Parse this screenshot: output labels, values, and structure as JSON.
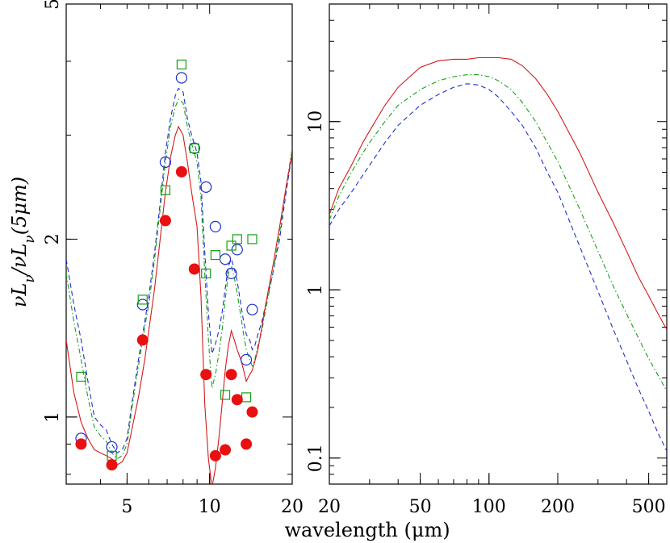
{
  "chart_data": [
    {
      "type": "scatter",
      "xscale": "log",
      "yscale": "log",
      "xlim": [
        3,
        20
      ],
      "ylim": [
        0.77,
        5
      ],
      "xticks": [
        {
          "v": 5,
          "label": "5"
        },
        {
          "v": 10,
          "label": "10"
        },
        {
          "v": 20,
          "label": "20"
        }
      ],
      "yticks": [
        {
          "v": 1,
          "label": "1"
        },
        {
          "v": 2,
          "label": "2"
        },
        {
          "v": 5,
          "label": "5"
        }
      ],
      "ylabel": "νL_ν/νL_ν(5μm)",
      "series": [
        {
          "style": "dashed",
          "color": "#1f2fd0",
          "x": [
            3.0,
            3.2,
            3.4,
            3.6,
            3.8,
            4.0,
            4.2,
            4.4,
            4.6,
            4.8,
            5.0,
            5.2,
            5.5,
            5.8,
            6.0,
            6.3,
            6.6,
            6.9,
            7.2,
            7.5,
            7.7,
            8.0,
            8.3,
            8.6,
            9.0,
            9.3,
            9.6,
            9.9,
            10.2,
            10.5,
            10.8,
            11.1,
            11.4,
            11.7,
            12.0,
            12.3,
            12.6,
            13.0,
            13.3,
            13.6,
            14.0,
            14.3,
            14.6,
            15.0,
            15.5,
            16.0,
            17.0,
            18.0,
            19.0,
            20.0
          ],
          "y": [
            1.85,
            1.55,
            1.35,
            1.15,
            1.0,
            0.97,
            0.95,
            0.9,
            0.87,
            0.88,
            0.92,
            1.05,
            1.25,
            1.45,
            1.6,
            1.9,
            2.3,
            2.8,
            3.2,
            3.5,
            3.6,
            3.55,
            3.2,
            3.0,
            2.8,
            2.5,
            1.9,
            1.5,
            1.28,
            1.33,
            1.4,
            1.5,
            1.65,
            1.8,
            1.85,
            1.78,
            1.7,
            1.55,
            1.45,
            1.38,
            1.35,
            1.3,
            1.32,
            1.38,
            1.45,
            1.55,
            1.75,
            2.0,
            2.4,
            2.8
          ]
        },
        {
          "style": "dashdot",
          "color": "#16a016",
          "x": [
            3.0,
            3.2,
            3.4,
            3.6,
            3.8,
            4.0,
            4.2,
            4.4,
            4.6,
            4.8,
            5.0,
            5.2,
            5.5,
            5.8,
            6.0,
            6.3,
            6.6,
            6.9,
            7.2,
            7.5,
            7.7,
            8.0,
            8.3,
            8.6,
            9.0,
            9.3,
            9.6,
            9.9,
            10.2,
            10.5,
            10.8,
            11.1,
            11.4,
            11.7,
            12.0,
            12.3,
            12.6,
            13.0,
            13.3,
            13.6,
            14.0,
            14.3,
            14.6,
            15.0,
            15.5,
            16.0,
            17.0,
            18.0,
            19.0,
            20.0
          ],
          "y": [
            1.75,
            1.45,
            1.25,
            1.08,
            0.96,
            0.93,
            0.91,
            0.87,
            0.85,
            0.86,
            0.9,
            1.03,
            1.22,
            1.42,
            1.55,
            1.85,
            2.25,
            2.7,
            3.1,
            3.35,
            3.45,
            3.4,
            3.1,
            2.9,
            2.7,
            2.35,
            1.75,
            1.35,
            1.12,
            1.18,
            1.28,
            1.4,
            1.58,
            1.75,
            1.8,
            1.72,
            1.62,
            1.48,
            1.38,
            1.3,
            1.25,
            1.22,
            1.25,
            1.32,
            1.4,
            1.52,
            1.75,
            2.05,
            2.45,
            2.85
          ]
        },
        {
          "style": "solid",
          "color": "#d41a1a",
          "x": [
            3.0,
            3.2,
            3.4,
            3.6,
            3.8,
            4.0,
            4.2,
            4.4,
            4.6,
            4.8,
            5.0,
            5.2,
            5.5,
            5.8,
            6.0,
            6.3,
            6.6,
            6.9,
            7.2,
            7.5,
            7.7,
            8.0,
            8.3,
            8.6,
            9.0,
            9.3,
            9.6,
            9.9,
            10.2,
            10.5,
            10.8,
            11.1,
            11.4,
            11.7,
            12.0,
            12.3,
            12.6,
            13.0,
            13.3,
            13.6,
            14.0,
            14.3,
            14.6,
            15.0,
            15.5,
            16.0,
            17.0,
            18.0,
            19.0,
            20.0
          ],
          "y": [
            1.35,
            1.1,
            0.98,
            0.92,
            0.88,
            0.87,
            0.86,
            0.85,
            0.83,
            0.84,
            0.87,
            0.95,
            1.08,
            1.25,
            1.4,
            1.65,
            2.0,
            2.4,
            2.75,
            3.0,
            3.1,
            3.0,
            2.7,
            2.4,
            2.1,
            1.6,
            1.05,
            0.85,
            0.76,
            0.82,
            0.92,
            1.05,
            1.2,
            1.32,
            1.4,
            1.35,
            1.3,
            1.25,
            1.2,
            1.15,
            1.18,
            1.2,
            1.24,
            1.3,
            1.42,
            1.55,
            1.8,
            2.1,
            2.45,
            2.8
          ]
        },
        {
          "marker": "open-circle",
          "color": "#1f2fd0",
          "x": [
            3.4,
            4.4,
            5.7,
            6.9,
            7.9,
            8.8,
            9.7,
            10.5,
            11.4,
            12.0,
            12.6,
            13.6,
            14.3
          ],
          "y": [
            0.92,
            0.89,
            1.55,
            2.7,
            3.75,
            2.85,
            2.45,
            2.1,
            1.85,
            1.75,
            1.92,
            1.25,
            1.52
          ]
        },
        {
          "marker": "open-square",
          "color": "#16a016",
          "x": [
            3.4,
            4.4,
            5.7,
            6.9,
            7.9,
            8.8,
            9.7,
            10.5,
            11.4,
            12.0,
            12.6,
            13.6,
            14.3
          ],
          "y": [
            1.17,
            0.86,
            1.58,
            2.42,
            3.95,
            2.85,
            1.75,
            1.88,
            1.09,
            1.95,
            2.0,
            1.08,
            2.0
          ]
        },
        {
          "marker": "filled-circle",
          "color": "#e81010",
          "x": [
            3.4,
            4.4,
            5.7,
            6.9,
            7.9,
            8.8,
            9.7,
            10.5,
            11.4,
            12.0,
            12.6,
            13.6,
            14.3
          ],
          "y": [
            0.9,
            0.83,
            1.35,
            2.15,
            2.6,
            1.78,
            1.18,
            0.86,
            0.88,
            1.18,
            1.07,
            0.9,
            1.02
          ]
        }
      ]
    },
    {
      "type": "line",
      "xscale": "log",
      "yscale": "log",
      "xlim": [
        20,
        600
      ],
      "ylim": [
        0.07,
        50
      ],
      "xticks": [
        {
          "v": 20,
          "label": "20"
        },
        {
          "v": 50,
          "label": "50"
        },
        {
          "v": 100,
          "label": "100"
        },
        {
          "v": 200,
          "label": "200"
        },
        {
          "v": 500,
          "label": "500"
        }
      ],
      "yticks": [
        {
          "v": 0.1,
          "label": "0.1"
        },
        {
          "v": 1,
          "label": "1"
        },
        {
          "v": 10,
          "label": "10"
        }
      ],
      "series": [
        {
          "style": "solid",
          "color": "#d41a1a",
          "x": [
            20,
            22,
            25,
            28,
            30,
            35,
            40,
            45,
            50,
            60,
            70,
            80,
            90,
            100,
            110,
            125,
            140,
            160,
            180,
            200,
            250,
            300,
            350,
            400,
            450,
            500,
            550,
            600
          ],
          "y": [
            2.8,
            4.0,
            5.5,
            7.5,
            8.8,
            12.5,
            16.0,
            18.5,
            21.0,
            23.0,
            23.5,
            23.5,
            24.0,
            24.0,
            24.0,
            23.5,
            21.5,
            18.0,
            14.5,
            11.5,
            6.5,
            3.8,
            2.5,
            1.7,
            1.2,
            0.92,
            0.72,
            0.58
          ]
        },
        {
          "style": "dashdot",
          "color": "#16a016",
          "x": [
            20,
            22,
            25,
            28,
            30,
            35,
            40,
            45,
            50,
            60,
            70,
            80,
            90,
            100,
            110,
            125,
            140,
            160,
            180,
            200,
            250,
            300,
            350,
            400,
            450,
            500,
            550,
            600
          ],
          "y": [
            2.6,
            3.6,
            5.0,
            6.5,
            7.5,
            10.0,
            12.5,
            14.0,
            15.5,
            17.5,
            18.5,
            19.0,
            19.0,
            18.5,
            17.5,
            15.5,
            13.0,
            10.0,
            7.5,
            5.8,
            3.0,
            1.7,
            1.05,
            0.72,
            0.52,
            0.39,
            0.31,
            0.25
          ]
        },
        {
          "style": "dashed",
          "color": "#1f2fd0",
          "x": [
            20,
            22,
            25,
            28,
            30,
            35,
            40,
            45,
            50,
            60,
            70,
            80,
            90,
            100,
            110,
            125,
            140,
            160,
            180,
            200,
            250,
            300,
            350,
            400,
            450,
            500,
            550,
            600
          ],
          "y": [
            2.4,
            3.0,
            3.8,
            4.8,
            5.5,
            7.5,
            9.5,
            11.0,
            12.5,
            14.5,
            16.0,
            16.8,
            16.5,
            15.5,
            14.0,
            11.5,
            9.5,
            7.0,
            5.0,
            3.8,
            1.8,
            0.98,
            0.58,
            0.38,
            0.26,
            0.19,
            0.14,
            0.11
          ]
        }
      ]
    }
  ],
  "shared_xlabel": "wavelength (μm)"
}
